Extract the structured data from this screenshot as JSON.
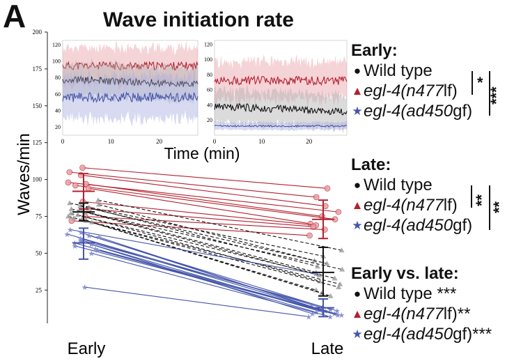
{
  "panel_label": "A",
  "title": "Wave initiation rate",
  "colors": {
    "wt": "#111111",
    "lf": "#b3202e",
    "gf": "#4455aa",
    "wt_band": "#b0b0b0",
    "lf_band": "#e8a0a6",
    "gf_band": "#a8aee0"
  },
  "legend": {
    "early": {
      "header": "Early:",
      "wt": "Wild type",
      "lf_gene": "egl-4(n477",
      "lf_suffix": "lf)",
      "gf_gene": "egl-4(ad450",
      "gf_suffix": "gf)",
      "sig1": "*",
      "sig2": "***"
    },
    "late": {
      "header": "Late:",
      "wt": "Wild type",
      "lf_gene": "egl-4(n477",
      "lf_suffix": "lf)",
      "gf_gene": "egl-4(ad450",
      "gf_suffix": "gf)",
      "sig1": "**",
      "sig2": "**"
    },
    "evl": {
      "header": "Early vs. late:",
      "wt": "Wild type",
      "wt_sig": "***",
      "lf_gene": "egl-4(n477",
      "lf_suffix": "lf)",
      "lf_sig": "**",
      "gf_gene": "egl-4(ad450",
      "gf_suffix": "gf)",
      "gf_sig": "***"
    }
  },
  "chart_data": [
    {
      "type": "scatter",
      "ylabel": "Waves/min",
      "categories": [
        "Early",
        "Late"
      ],
      "yticks": [
        25,
        50,
        75,
        100,
        125,
        150,
        175,
        200
      ],
      "ylim": [
        10,
        200
      ],
      "series": [
        {
          "key": "lf",
          "marker": "circle",
          "early": [
            108,
            105,
            103,
            98,
            97,
            96,
            94,
            85,
            80,
            75,
            72
          ],
          "late": [
            94,
            88,
            82,
            78,
            75,
            73,
            70,
            69,
            68,
            66,
            62
          ],
          "mean": [
            92,
            73
          ],
          "err": [
            [
              80,
              104
            ],
            [
              60,
              86
            ]
          ]
        },
        {
          "key": "wt",
          "marker": "triangle",
          "early": [
            86,
            84,
            83,
            82,
            81,
            80,
            79,
            78,
            77,
            76,
            75,
            74,
            73,
            72,
            71
          ],
          "late": [
            52,
            48,
            45,
            43,
            41,
            39,
            37,
            35,
            33,
            31,
            29,
            27,
            25,
            23,
            21
          ],
          "mean": [
            78,
            37
          ],
          "err": [
            [
              72,
              84
            ],
            [
              21,
              54
            ]
          ]
        },
        {
          "key": "gf",
          "marker": "star",
          "early": [
            66,
            64,
            63,
            62,
            61,
            60,
            59,
            58,
            57,
            56,
            55,
            53,
            52,
            50,
            27
          ],
          "late": [
            36,
            14,
            13,
            12,
            12,
            11,
            11,
            10,
            10,
            9,
            9,
            8,
            8,
            7,
            7
          ],
          "mean": [
            57,
            13
          ],
          "err": [
            [
              46,
              67
            ],
            [
              7,
              19
            ]
          ]
        }
      ]
    },
    {
      "type": "line",
      "xlabel": "Time (min)",
      "xticks": [
        0,
        10,
        20
      ],
      "xlim": [
        0,
        28
      ],
      "yticks": [
        20,
        40,
        60,
        80,
        100,
        120
      ],
      "ylim": [
        10,
        125
      ],
      "series": [
        {
          "key": "lf",
          "mean": 94,
          "band": 22
        },
        {
          "key": "wt",
          "mean": 78,
          "band": 20
        },
        {
          "key": "gf",
          "mean": 56,
          "band": 26
        }
      ]
    },
    {
      "type": "line",
      "xticks": [
        0,
        10,
        20
      ],
      "xlim": [
        0,
        28
      ],
      "yticks": [
        20,
        40,
        60,
        80,
        100,
        120
      ],
      "ylim": [
        0,
        125
      ],
      "series": [
        {
          "key": "lf",
          "mean": 72,
          "band": 25
        },
        {
          "key": "wt",
          "mean": 38,
          "band": 22
        },
        {
          "key": "gf",
          "mean": 12,
          "band": 5
        }
      ]
    }
  ]
}
